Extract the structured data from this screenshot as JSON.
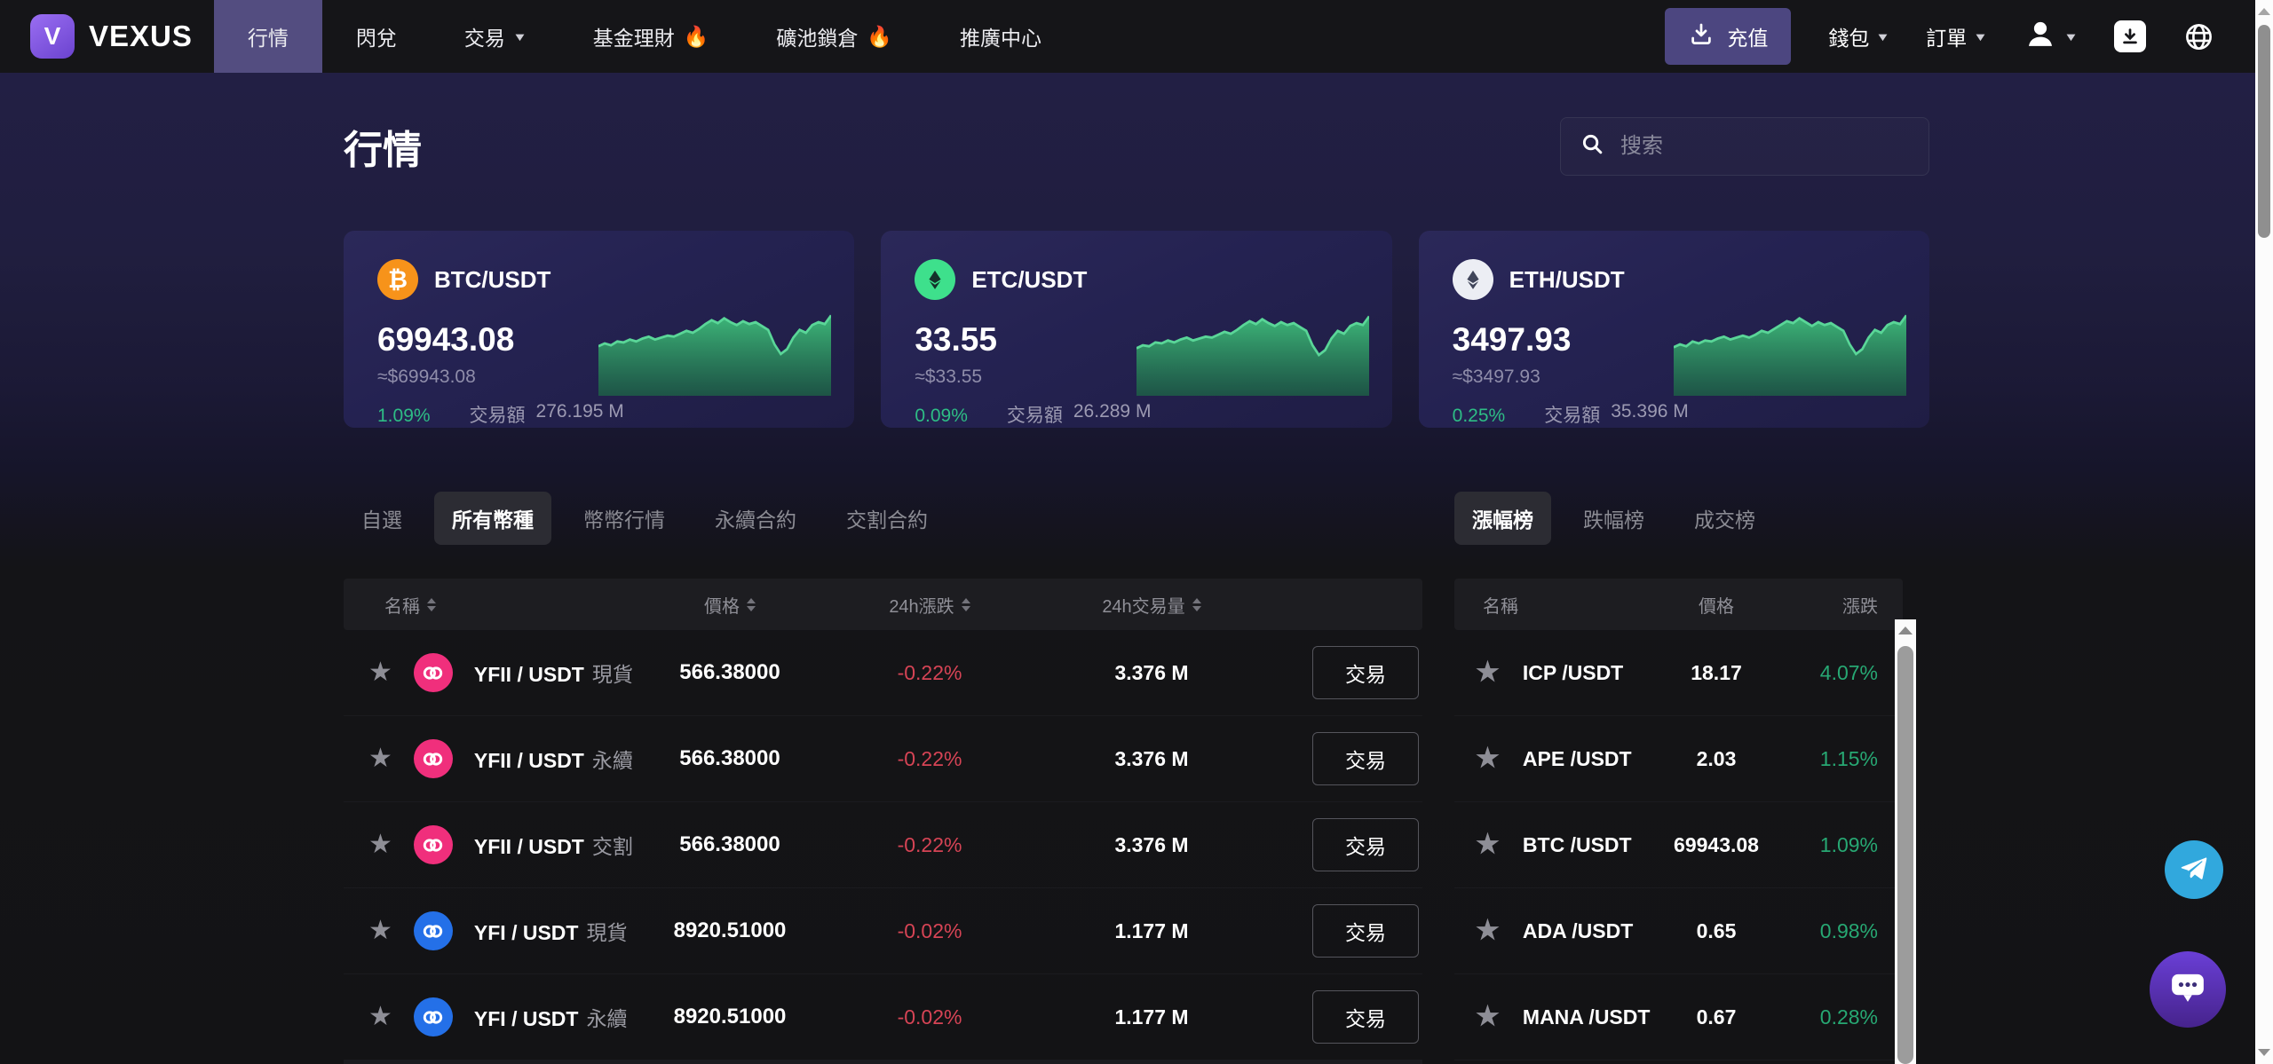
{
  "nav": {
    "brand": "VEXUS",
    "items": [
      {
        "label": "行情",
        "active": true,
        "caret": false,
        "hot": false
      },
      {
        "label": "閃兌",
        "active": false,
        "caret": false,
        "hot": false
      },
      {
        "label": "交易",
        "active": false,
        "caret": true,
        "hot": false
      },
      {
        "label": "基金理財",
        "active": false,
        "caret": false,
        "hot": true
      },
      {
        "label": "礦池鎖倉",
        "active": false,
        "caret": false,
        "hot": true
      },
      {
        "label": "推廣中心",
        "active": false,
        "caret": false,
        "hot": false
      }
    ],
    "hot_icon": "🔥",
    "deposit_label": "充值",
    "wallet_label": "錢包",
    "orders_label": "訂單"
  },
  "page": {
    "title": "行情",
    "search_placeholder": "搜索"
  },
  "market_cards": [
    {
      "pair": "BTC/USDT",
      "icon": "btc",
      "price": "69943.08",
      "approx": "≈$69943.08",
      "change": "1.09%",
      "volume_label": "交易額",
      "volume": "276.195 M",
      "spark": [
        46,
        49,
        47,
        51,
        50,
        53,
        51,
        54,
        56,
        53,
        55,
        57,
        56,
        59,
        62,
        60,
        64,
        69,
        73,
        70,
        75,
        71,
        68,
        72,
        69,
        71,
        67,
        63,
        48,
        38,
        43,
        55,
        63,
        60,
        68,
        71,
        69,
        78
      ]
    },
    {
      "pair": "ETC/USDT",
      "icon": "etc",
      "price": "33.55",
      "approx": "≈$33.55",
      "change": "0.09%",
      "volume_label": "交易額",
      "volume": "26.289 M",
      "spark": [
        44,
        47,
        46,
        50,
        49,
        52,
        50,
        53,
        55,
        52,
        54,
        56,
        55,
        58,
        61,
        59,
        63,
        68,
        72,
        69,
        74,
        70,
        67,
        71,
        68,
        70,
        66,
        62,
        47,
        37,
        42,
        54,
        62,
        59,
        67,
        70,
        68,
        77
      ]
    },
    {
      "pair": "ETH/USDT",
      "icon": "eth",
      "price": "3497.93",
      "approx": "≈$3497.93",
      "change": "0.25%",
      "volume_label": "交易額",
      "volume": "35.396 M",
      "spark": [
        45,
        48,
        46,
        51,
        49,
        52,
        51,
        54,
        56,
        53,
        55,
        57,
        55,
        58,
        62,
        60,
        64,
        68,
        72,
        70,
        75,
        71,
        67,
        71,
        68,
        70,
        66,
        62,
        48,
        38,
        43,
        55,
        63,
        60,
        68,
        71,
        69,
        78
      ]
    }
  ],
  "left_tabs": [
    {
      "label": "自選",
      "active": false
    },
    {
      "label": "所有幣種",
      "active": true
    },
    {
      "label": "幣幣行情",
      "active": false
    },
    {
      "label": "永續合約",
      "active": false
    },
    {
      "label": "交割合約",
      "active": false
    }
  ],
  "right_tabs": [
    {
      "label": "漲幅榜",
      "active": true
    },
    {
      "label": "跌幅榜",
      "active": false
    },
    {
      "label": "成交榜",
      "active": false
    }
  ],
  "main_table": {
    "headers": [
      "名稱",
      "價格",
      "24h漲跌",
      "24h交易量"
    ],
    "action_label": "交易",
    "rows": [
      {
        "icon": "yfii",
        "base": "YFII / USDT",
        "tag": "現貨",
        "price": "566.38000",
        "change": "-0.22%",
        "volume": "3.376 M"
      },
      {
        "icon": "yfii",
        "base": "YFII / USDT",
        "tag": "永續",
        "price": "566.38000",
        "change": "-0.22%",
        "volume": "3.376 M"
      },
      {
        "icon": "yfii",
        "base": "YFII / USDT",
        "tag": "交割",
        "price": "566.38000",
        "change": "-0.22%",
        "volume": "3.376 M"
      },
      {
        "icon": "yfi",
        "base": "YFI / USDT",
        "tag": "現貨",
        "price": "8920.51000",
        "change": "-0.02%",
        "volume": "1.177 M"
      },
      {
        "icon": "yfi",
        "base": "YFI / USDT",
        "tag": "永續",
        "price": "8920.51000",
        "change": "-0.02%",
        "volume": "1.177 M"
      }
    ]
  },
  "rank_table": {
    "headers": [
      "名稱",
      "價格",
      "漲跌"
    ],
    "rows": [
      {
        "name": "ICP /USDT",
        "price": "18.17",
        "change": "4.07%"
      },
      {
        "name": "APE /USDT",
        "price": "2.03",
        "change": "1.15%"
      },
      {
        "name": "BTC /USDT",
        "price": "69943.08",
        "change": "1.09%"
      },
      {
        "name": "ADA /USDT",
        "price": "0.65",
        "change": "0.98%"
      },
      {
        "name": "MANA /USDT",
        "price": "0.67",
        "change": "0.28%"
      }
    ]
  },
  "colors": {
    "accent_purple": "#534d80",
    "green": "#2ebd85",
    "red": "#d64455",
    "chart_green": "#3fbf7c",
    "btc_orange": "#f7931a",
    "yfii_pink": "#f02f7c",
    "yfi_blue": "#2470e8",
    "telegram_blue": "#31a8dd"
  }
}
